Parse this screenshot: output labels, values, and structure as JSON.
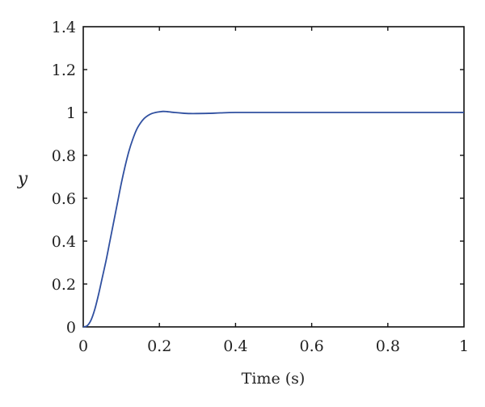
{
  "chart_data": {
    "type": "line",
    "title": "",
    "xlabel": "Time (s)",
    "ylabel": "y",
    "xlim": [
      0,
      1
    ],
    "ylim": [
      0,
      1.4
    ],
    "grid": false,
    "legend": null,
    "x_ticks": [
      "0",
      "0.2",
      "0.4",
      "0.6",
      "0.8",
      "1"
    ],
    "y_ticks": [
      "0",
      "0.2",
      "0.4",
      "0.6",
      "0.8",
      "1",
      "1.2",
      "1.4"
    ],
    "series": [
      {
        "name": "y",
        "color": "#3050a0",
        "x": [
          0.0,
          0.01,
          0.02,
          0.03,
          0.04,
          0.05,
          0.06,
          0.07,
          0.08,
          0.09,
          0.1,
          0.11,
          0.12,
          0.13,
          0.14,
          0.15,
          0.16,
          0.17,
          0.18,
          0.19,
          0.2,
          0.21,
          0.22,
          0.24,
          0.26,
          0.28,
          0.3,
          0.33,
          0.36,
          0.4,
          0.5,
          0.6,
          0.7,
          0.8,
          0.9,
          1.0
        ],
        "values": [
          0.0,
          0.005,
          0.03,
          0.08,
          0.15,
          0.23,
          0.31,
          0.4,
          0.49,
          0.58,
          0.67,
          0.75,
          0.82,
          0.875,
          0.92,
          0.95,
          0.972,
          0.986,
          0.995,
          1.0,
          1.003,
          1.005,
          1.004,
          1.0,
          0.997,
          0.995,
          0.995,
          0.996,
          0.998,
          1.0,
          1.0,
          1.0,
          1.0,
          1.0,
          1.0,
          1.0
        ]
      }
    ]
  },
  "axes": {
    "x_label": "Time (s)",
    "y_label": "y"
  }
}
